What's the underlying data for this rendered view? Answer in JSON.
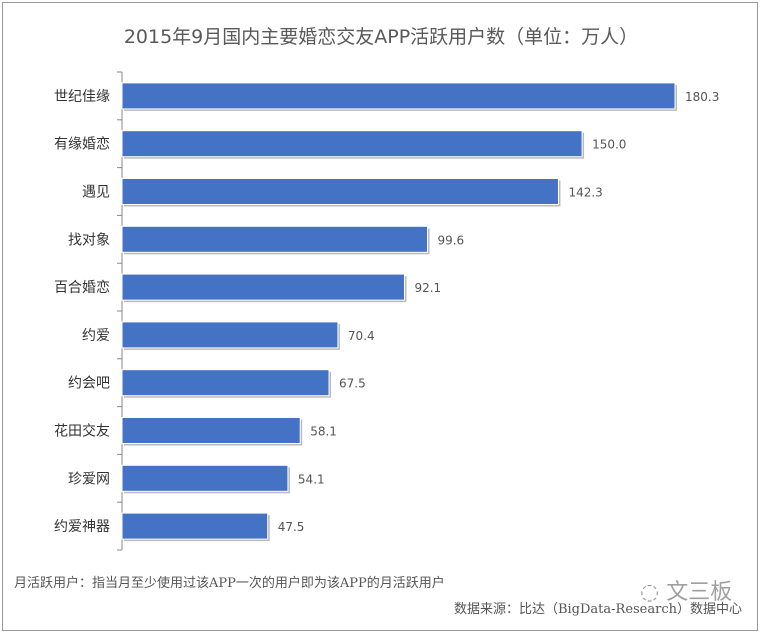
{
  "chart_data": {
    "type": "bar",
    "orientation": "horizontal",
    "title": "2015年9月国内主要婚恋交友APP活跃用户数（单位：万人）",
    "categories": [
      "世纪佳缘",
      "有缘婚恋",
      "遇见",
      "找对象",
      "百合婚恋",
      "约爱",
      "约会吧",
      "花田交友",
      "珍爱网",
      "约爱神器"
    ],
    "values": [
      180.3,
      150.0,
      142.3,
      99.6,
      92.1,
      70.4,
      67.5,
      58.1,
      54.1,
      47.5
    ],
    "value_labels": [
      "180.3",
      "150.0",
      "142.3",
      "99.6",
      "92.1",
      "70.4",
      "67.5",
      "58.1",
      "54.1",
      "47.5"
    ],
    "xlim": [
      0,
      180.3
    ],
    "grid": false,
    "bar_color": "#4472C4"
  },
  "footer": {
    "note": "月活跃用户：指当月至少使用过该APP一次的用户即为该APP的月活跃用户",
    "source": "数据来源：比达（BigData-Research）数据中心"
  },
  "watermark": "文三板"
}
